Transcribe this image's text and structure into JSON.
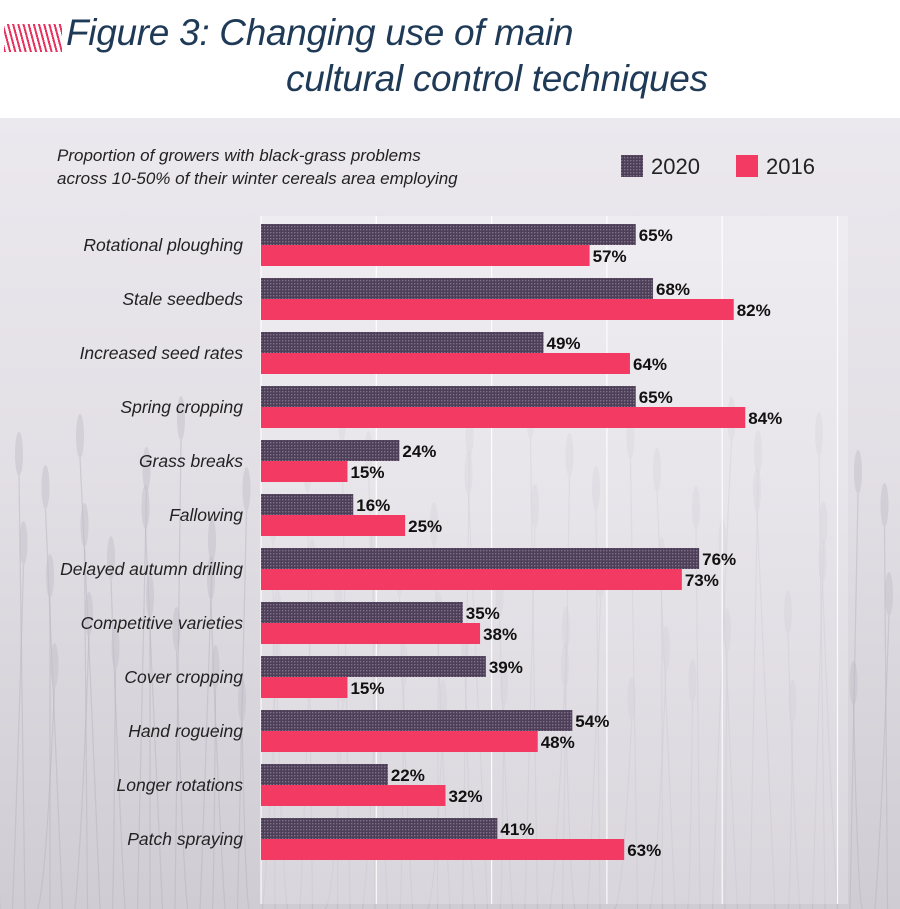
{
  "figure_title": {
    "line1": "Figure 3: Changing use of main",
    "line2": "cultural control techniques"
  },
  "colors": {
    "series_2020": "#4d3f57",
    "series_2016": "#f23a63",
    "title": "#1f3a57",
    "accent_hatch": "#e8335f"
  },
  "chart_data": {
    "type": "bar",
    "orientation": "horizontal",
    "subtitle": [
      "Proportion of growers with black-grass problems",
      "across 10-50% of their winter cereals area employing"
    ],
    "categories": [
      "Rotational ploughing",
      "Stale seedbeds",
      "Increased seed rates",
      "Spring cropping",
      "Grass breaks",
      "Fallowing",
      "Delayed autumn drilling",
      "Competitive varieties",
      "Cover cropping",
      "Hand rogueing",
      "Longer rotations",
      "Patch spraying"
    ],
    "series": [
      {
        "name": "2020",
        "values": [
          65,
          68,
          49,
          65,
          24,
          16,
          76,
          35,
          39,
          54,
          22,
          41
        ]
      },
      {
        "name": "2016",
        "values": [
          57,
          82,
          64,
          84,
          15,
          25,
          73,
          38,
          15,
          48,
          32,
          63
        ]
      }
    ],
    "value_suffix": "%",
    "xlim": [
      0,
      100
    ],
    "grid": true,
    "legend_position": "top-right"
  }
}
